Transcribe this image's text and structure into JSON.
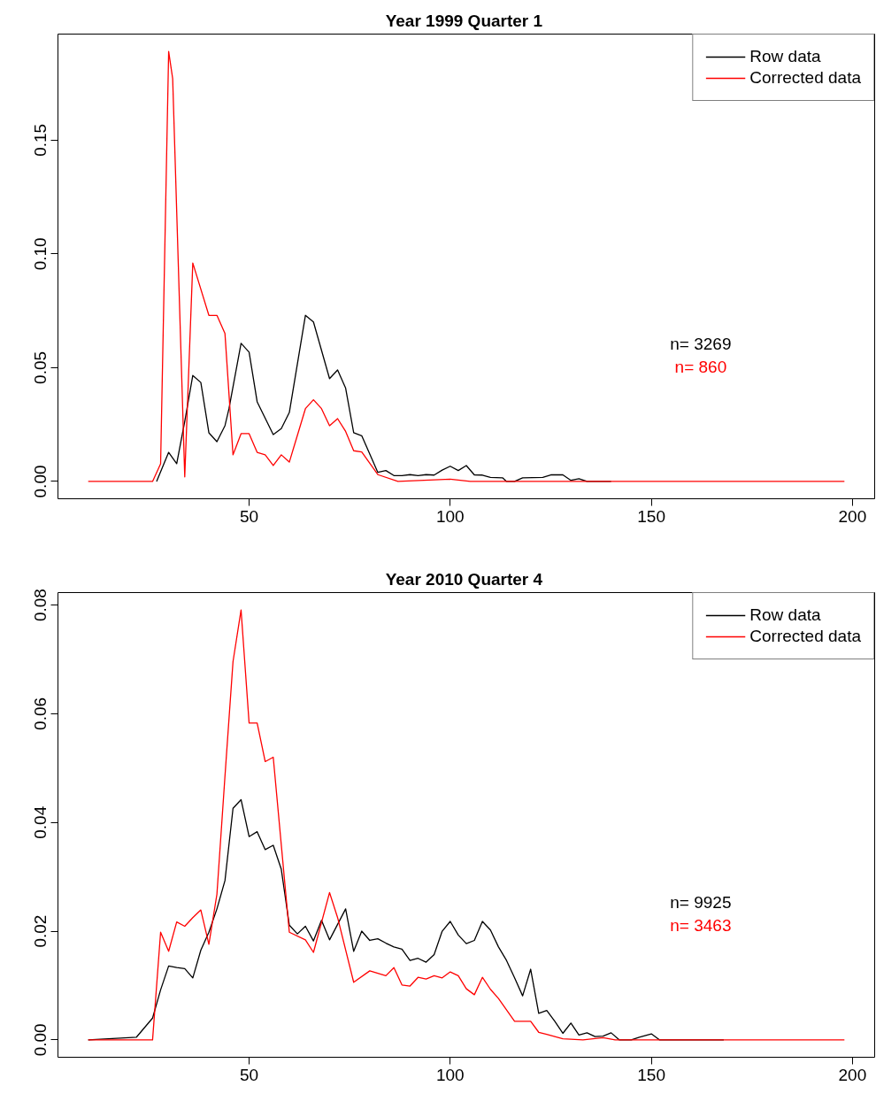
{
  "chart_data": [
    {
      "type": "line",
      "title": "Year 1999  Quarter 1",
      "legend": "top right",
      "xlim": [
        2.48,
        205.52
      ],
      "ylim": [
        -0.0076,
        0.1966
      ],
      "xticks": [
        50,
        100,
        150,
        200
      ],
      "yticks": [
        {
          "value": 0,
          "label": "0.00"
        },
        {
          "value": 0.05,
          "label": "0.05"
        },
        {
          "value": 0.1,
          "label": "0.10"
        },
        {
          "value": 0.15,
          "label": "0.15"
        }
      ],
      "annotations": [
        "n= 3269",
        "n= 860"
      ],
      "series": [
        {
          "name": "Row data",
          "color": "#000000",
          "x": [
            27,
            30,
            32,
            34,
            36,
            38,
            40,
            42,
            44,
            45,
            48,
            50,
            52,
            56,
            58,
            60,
            64,
            66,
            70,
            72,
            74,
            76,
            78,
            82,
            84,
            86,
            88,
            90,
            92,
            94,
            96,
            98,
            100,
            102,
            104,
            106,
            108,
            110,
            113,
            114,
            116,
            118,
            123,
            125,
            128,
            130,
            132,
            134,
            140
          ],
          "values": [
            0,
            0.0128,
            0.0078,
            0.0264,
            0.0466,
            0.0435,
            0.0214,
            0.0175,
            0.0245,
            0.032,
            0.0607,
            0.0568,
            0.035,
            0.0206,
            0.0232,
            0.0303,
            0.073,
            0.0701,
            0.0452,
            0.049,
            0.041,
            0.0214,
            0.0201,
            0.004,
            0.0048,
            0.0026,
            0.0026,
            0.003,
            0.0026,
            0.003,
            0.0028,
            0.005,
            0.0067,
            0.0048,
            0.007,
            0.0029,
            0.0028,
            0.0018,
            0.0016,
            0,
            0,
            0.0016,
            0.0018,
            0.0029,
            0.0029,
            0.0005,
            0.0012,
            0,
            0
          ]
        },
        {
          "name": "Corrected data",
          "color": "#ff0000",
          "x": [
            10,
            26,
            28,
            30,
            31,
            34,
            36,
            40,
            42,
            44,
            46,
            48,
            50,
            52,
            54,
            56,
            58,
            60,
            64,
            66,
            68,
            70,
            72,
            74,
            76,
            78,
            82,
            87,
            100,
            105,
            198
          ],
          "values": [
            0,
            0,
            0.0078,
            0.189,
            0.177,
            0.002,
            0.096,
            0.073,
            0.073,
            0.065,
            0.0117,
            0.021,
            0.021,
            0.0128,
            0.0117,
            0.007,
            0.0117,
            0.0085,
            0.032,
            0.0359,
            0.032,
            0.0245,
            0.0276,
            0.022,
            0.0135,
            0.013,
            0.003,
            0,
            0.001,
            0,
            0
          ]
        }
      ]
    },
    {
      "type": "line",
      "title": "Year 2010  Quarter 4",
      "legend": "top right",
      "xlim": [
        2.48,
        205.52
      ],
      "ylim": [
        -0.0032,
        0.0823
      ],
      "xticks": [
        50,
        100,
        150,
        200
      ],
      "yticks": [
        {
          "value": 0,
          "label": "0.00"
        },
        {
          "value": 0.02,
          "label": "0.02"
        },
        {
          "value": 0.04,
          "label": "0.04"
        },
        {
          "value": 0.06,
          "label": "0.06"
        },
        {
          "value": 0.08,
          "label": "0.08"
        }
      ],
      "annotations": [
        "n= 9925",
        "n= 3463"
      ],
      "series": [
        {
          "name": "Row data",
          "color": "#000000",
          "x": [
            10,
            22,
            26,
            28,
            30,
            32,
            34,
            36,
            38,
            40,
            42,
            44,
            46,
            48,
            50,
            52,
            54,
            56,
            58,
            60,
            62,
            64,
            66,
            68,
            70,
            74,
            76,
            78,
            80,
            82,
            84,
            86,
            88,
            90,
            92,
            94,
            96,
            98,
            100,
            102,
            104,
            106,
            108,
            110,
            112,
            114,
            116,
            118,
            120,
            122,
            124,
            126,
            128,
            130,
            132,
            134,
            136,
            138,
            140,
            142,
            145,
            147,
            150,
            152,
            168
          ],
          "values": [
            0,
            0.0005,
            0.004,
            0.0092,
            0.0136,
            0.0133,
            0.0131,
            0.0114,
            0.0165,
            0.0198,
            0.0241,
            0.0293,
            0.0426,
            0.0442,
            0.0374,
            0.0383,
            0.035,
            0.0358,
            0.0314,
            0.0211,
            0.0195,
            0.0209,
            0.0182,
            0.022,
            0.0184,
            0.0241,
            0.0163,
            0.02,
            0.0183,
            0.0186,
            0.0178,
            0.0171,
            0.0167,
            0.0146,
            0.015,
            0.0143,
            0.0157,
            0.02,
            0.0218,
            0.0193,
            0.0177,
            0.0183,
            0.0218,
            0.0202,
            0.0171,
            0.0146,
            0.0114,
            0.0081,
            0.013,
            0.0049,
            0.0054,
            0.0034,
            0.0012,
            0.0031,
            0.0009,
            0.0013,
            0.0006,
            0.0007,
            0.0013,
            0,
            0,
            0.0005,
            0.0011,
            0,
            0
          ]
        },
        {
          "name": "Corrected data",
          "color": "#ff0000",
          "x": [
            10,
            26,
            28,
            30,
            32,
            34,
            36,
            38,
            40,
            42,
            44,
            46,
            48,
            50,
            52,
            54,
            56,
            60,
            64,
            66,
            70,
            72,
            76,
            80,
            84,
            86,
            88,
            90,
            92,
            94,
            96,
            98,
            100,
            102,
            104,
            106,
            108,
            110,
            112,
            116,
            120,
            122,
            124,
            128,
            133,
            138,
            141,
            198
          ],
          "values": [
            0,
            0,
            0.0198,
            0.0163,
            0.0217,
            0.0209,
            0.0225,
            0.0239,
            0.0176,
            0.0268,
            0.0485,
            0.0696,
            0.0791,
            0.0583,
            0.0583,
            0.0512,
            0.052,
            0.0198,
            0.0184,
            0.0161,
            0.0271,
            0.0225,
            0.0106,
            0.0127,
            0.0118,
            0.0133,
            0.0101,
            0.0099,
            0.0115,
            0.0112,
            0.0118,
            0.0114,
            0.0125,
            0.0118,
            0.0094,
            0.0083,
            0.0115,
            0.0093,
            0.0076,
            0.0034,
            0.0034,
            0.0014,
            0.001,
            0.0002,
            0,
            0.0004,
            0,
            0
          ]
        }
      ]
    }
  ]
}
